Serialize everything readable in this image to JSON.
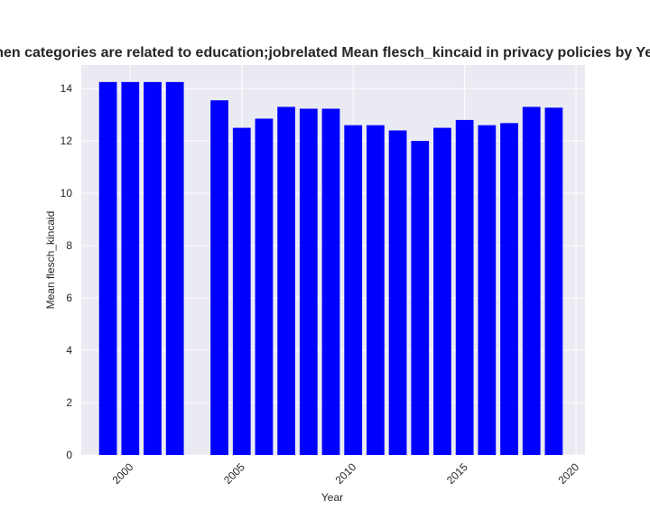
{
  "chart_data": {
    "type": "bar",
    "title": "when categories are related to education;jobrelated Mean flesch_kincaid in privacy policies by Year",
    "xlabel": "Year",
    "ylabel": "Mean flesch_kincaid",
    "xlim": [
      1997.8,
      2020.4
    ],
    "ylim": [
      0,
      14.9
    ],
    "x_ticks": [
      2000,
      2005,
      2010,
      2015,
      2020
    ],
    "y_ticks": [
      0,
      2,
      4,
      6,
      8,
      10,
      12,
      14
    ],
    "x": [
      1999,
      2000,
      2001,
      2002,
      2004,
      2005,
      2006,
      2007,
      2008,
      2009,
      2010,
      2011,
      2012,
      2013,
      2014,
      2015,
      2016,
      2017,
      2018,
      2019
    ],
    "values": [
      14.25,
      14.25,
      14.25,
      14.25,
      13.55,
      12.5,
      12.85,
      13.3,
      13.23,
      13.23,
      12.6,
      12.6,
      12.4,
      12.0,
      12.5,
      12.8,
      12.6,
      12.68,
      13.3,
      13.27
    ],
    "bar_color": "#0000ff",
    "plot_background": "#eaeaf2",
    "grid": true,
    "grid_color": "#ffffff",
    "x_tick_rotation": 45
  }
}
